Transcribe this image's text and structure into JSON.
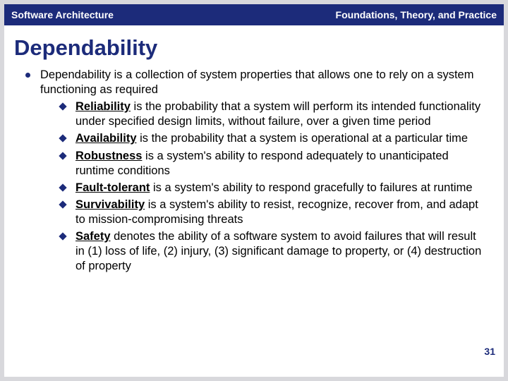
{
  "header": {
    "left": "Software Architecture",
    "right": "Foundations, Theory, and Practice"
  },
  "title": "Dependability",
  "intro": "Dependability is a collection of system properties that allows one to rely on a system functioning as required",
  "items": [
    {
      "term": "Reliability",
      "rest": " is the probability that a system will perform its intended functionality under specified design limits, without failure, over a given time period"
    },
    {
      "term": "Availability",
      "rest": " is the probability that a system is operational at a particular time"
    },
    {
      "term": "Robustness",
      "rest": " is a system's ability to respond adequately to unanticipated runtime conditions"
    },
    {
      "term": "Fault-tolerant",
      "rest": " is a system's ability to respond gracefully to failures at runtime"
    },
    {
      "term": "Survivability",
      "rest": " is a system's ability to resist, recognize, recover from, and adapt to mission-compromising threats"
    },
    {
      "term": "Safety",
      "rest": " denotes the ability of a software system to avoid failures that will result in (1) loss of life, (2) injury, (3) significant damage to property, or (4) destruction of property"
    }
  ],
  "page_number": "31",
  "colors": {
    "brand": "#1c2b7a",
    "background": "#ffffff",
    "outer": "#d8d8dc"
  }
}
